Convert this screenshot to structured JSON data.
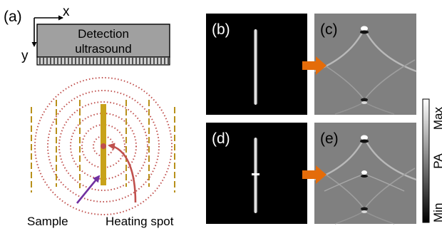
{
  "panel_a": {
    "label": "(a)",
    "axis_x": "x",
    "axis_y": "y",
    "probe_line1": "Detection",
    "probe_line2": "ultrasound",
    "sample_label": "Sample",
    "heating_label": "Heating spot"
  },
  "panels": {
    "b": "(b)",
    "c": "(c)",
    "d": "(d)",
    "e": "(e)"
  },
  "colorbar": {
    "max_label": "Max",
    "mid_label": "PA",
    "min_label": "Min"
  },
  "colors": {
    "probe_fill": "#a0a0a0",
    "rings": "#c0504d",
    "sample": "#c8a21a",
    "sample_dashes": "#b8901a",
    "heating_spot": "#c0504d",
    "sample_arrow": "#7030a0",
    "heating_arrow": "#c0504d",
    "process_arrow": "#e46c0a"
  }
}
